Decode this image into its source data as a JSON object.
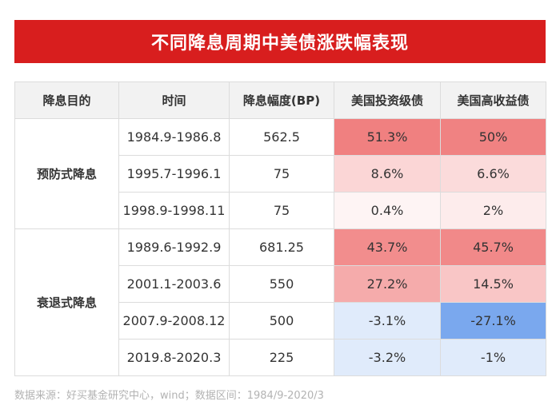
{
  "title": "不同降息周期中美债涨跌幅表现",
  "headers": [
    "降息目的",
    "时间",
    "降息幅度(BP)",
    "美国投资级债",
    "美国高收益债"
  ],
  "groups": [
    {
      "purpose": "预防式降息",
      "rows": [
        {
          "period": "1984.9-1986.8",
          "cut": "562.5",
          "ig": "51.3%",
          "hy": "50%"
        },
        {
          "period": "1995.7-1996.1",
          "cut": "75",
          "ig": "8.6%",
          "hy": "6.6%"
        },
        {
          "period": "1998.9-1998.11",
          "cut": "75",
          "ig": "0.4%",
          "hy": "2%"
        }
      ]
    },
    {
      "purpose": "衰退式降息",
      "rows": [
        {
          "period": "1989.6-1992.9",
          "cut": "681.25",
          "ig": "43.7%",
          "hy": "45.7%"
        },
        {
          "period": "2001.1-2003.6",
          "cut": "550",
          "ig": "27.2%",
          "hy": "14.5%"
        },
        {
          "period": "2007.9-2008.12",
          "cut": "500",
          "ig": "-3.1%",
          "hy": "-27.1%"
        },
        {
          "period": "2019.8-2020.3",
          "cut": "225",
          "ig": "-3.2%",
          "hy": "-1%"
        }
      ]
    }
  ],
  "source": "数据来源：好买基金研究中心，wind；数据区间：1984/9-2020/3",
  "chart_data": {
    "type": "table",
    "title": "不同降息周期中美债涨跌幅表现",
    "columns": [
      "降息目的",
      "时间",
      "降息幅度(BP)",
      "美国投资级债",
      "美国高收益债"
    ],
    "rows": [
      [
        "预防式降息",
        "1984.9-1986.8",
        562.5,
        51.3,
        50
      ],
      [
        "预防式降息",
        "1995.7-1996.1",
        75,
        8.6,
        6.6
      ],
      [
        "预防式降息",
        "1998.9-1998.11",
        75,
        0.4,
        2
      ],
      [
        "衰退式降息",
        "1989.6-1992.9",
        681.25,
        43.7,
        45.7
      ],
      [
        "衰退式降息",
        "2001.1-2003.6",
        550,
        27.2,
        14.5
      ],
      [
        "衰退式降息",
        "2007.9-2008.12",
        500,
        -3.1,
        -27.1
      ],
      [
        "衰退式降息",
        "2019.8-2020.3",
        225,
        -3.2,
        -1
      ]
    ],
    "colors": {
      "title_bg": "#d81e1e",
      "positive_max": "#f08080",
      "positive_min": "#fff8f8",
      "negative_max": "#7aa8ee",
      "negative_min": "#eef4fd"
    }
  }
}
